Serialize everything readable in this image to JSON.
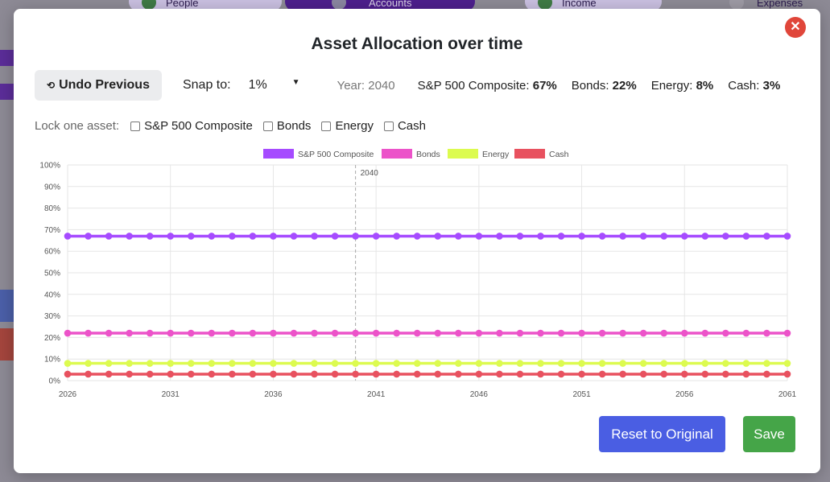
{
  "background": {
    "tabs": [
      {
        "label": "People"
      },
      {
        "label": "Accounts"
      },
      {
        "label": "Income"
      },
      {
        "label": "Expenses"
      }
    ]
  },
  "modal": {
    "title": "Asset Allocation over time",
    "close_icon": "✕",
    "undo_label": "Undo Previous",
    "undo_icon": "⟲",
    "snap_label": "Snap to:",
    "snap_value": "1%",
    "year_text": "Year: 2040",
    "allocations": [
      {
        "name": "S&P 500 Composite:",
        "value": "67%"
      },
      {
        "name": "Bonds:",
        "value": "22%"
      },
      {
        "name": "Energy:",
        "value": "8%"
      },
      {
        "name": "Cash:",
        "value": "3%"
      }
    ],
    "lock_label": "Lock one asset:",
    "lock_options": [
      "S&P 500 Composite",
      "Bonds",
      "Energy",
      "Cash"
    ],
    "reset_label": "Reset to Original",
    "save_label": "Save"
  },
  "colors": {
    "sp500": "#a64bff",
    "bonds": "#ec53c9",
    "energy": "#dcfb4f",
    "cash": "#e8515f"
  },
  "chart_data": {
    "type": "line",
    "x": [
      2026,
      2027,
      2028,
      2029,
      2030,
      2031,
      2032,
      2033,
      2034,
      2035,
      2036,
      2037,
      2038,
      2039,
      2040,
      2041,
      2042,
      2043,
      2044,
      2045,
      2046,
      2047,
      2048,
      2049,
      2050,
      2051,
      2052,
      2053,
      2054,
      2055,
      2056,
      2057,
      2058,
      2059,
      2060,
      2061
    ],
    "x_ticks": [
      "2026",
      "2031",
      "2036",
      "2041",
      "2046",
      "2051",
      "2056",
      "2061"
    ],
    "y_ticks": [
      "0%",
      "10%",
      "20%",
      "30%",
      "40%",
      "50%",
      "60%",
      "70%",
      "80%",
      "90%",
      "100%"
    ],
    "ylim": [
      0,
      100
    ],
    "marker_year": "2040",
    "series": [
      {
        "name": "S&P 500 Composite",
        "color": "#a64bff",
        "value": 67
      },
      {
        "name": "Bonds",
        "color": "#ec53c9",
        "value": 22
      },
      {
        "name": "Energy",
        "color": "#dcfb4f",
        "value": 8
      },
      {
        "name": "Cash",
        "color": "#e8515f",
        "value": 3
      }
    ],
    "legend": "top",
    "grid": true
  }
}
